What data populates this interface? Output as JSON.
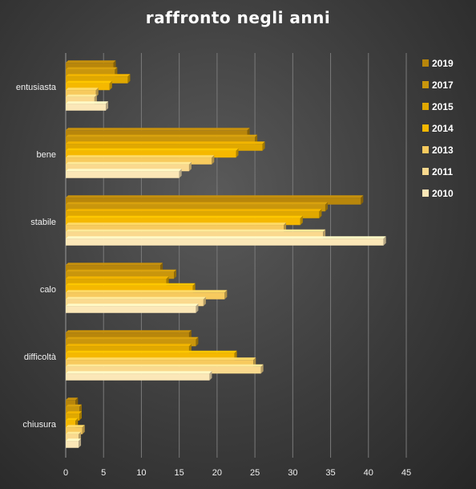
{
  "chart_data": {
    "type": "bar",
    "orientation": "horizontal",
    "title": "raffronto  negli anni",
    "xlabel": "",
    "ylabel": "",
    "xlim": [
      0,
      45
    ],
    "xticks": [
      0,
      5,
      10,
      15,
      20,
      25,
      30,
      35,
      40,
      45
    ],
    "grid": true,
    "legend_position": "right",
    "categories": [
      "entusiasta",
      "bene",
      "stabile",
      "calo",
      "difficoltà",
      "chiusura"
    ],
    "series": [
      {
        "name": "2019",
        "color": "#b8860b",
        "values": [
          6.3,
          24,
          39,
          12.5,
          16.3,
          1.3
        ]
      },
      {
        "name": "2017",
        "color": "#c9960c",
        "values": [
          6.5,
          25,
          34.3,
          14.3,
          17.2,
          1.8
        ]
      },
      {
        "name": "2015",
        "color": "#e0a800",
        "values": [
          8.2,
          26,
          33.5,
          13.3,
          16.3,
          1.8
        ]
      },
      {
        "name": "2014",
        "color": "#f5b800",
        "values": [
          5.8,
          22.5,
          31,
          16.8,
          22.3,
          1.3
        ]
      },
      {
        "name": "2013",
        "color": "#f7ca5e",
        "values": [
          4,
          19.3,
          28.8,
          21,
          24.8,
          2.2
        ]
      },
      {
        "name": "2011",
        "color": "#fad98e",
        "values": [
          3.8,
          16.3,
          34,
          18.2,
          25.8,
          1.7
        ]
      },
      {
        "name": "2010",
        "color": "#fbe7b7",
        "values": [
          5.3,
          15,
          42,
          17.2,
          19,
          1.7
        ]
      }
    ]
  }
}
